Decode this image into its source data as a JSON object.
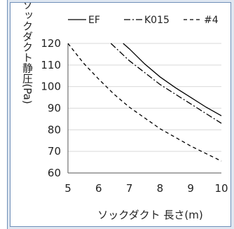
{
  "chart_data": {
    "type": "line",
    "title": "",
    "xlabel": "ソックダクト 長さ(m)",
    "ylabel": "ソックダクト静圧(Pa)",
    "xlim": [
      5,
      10
    ],
    "ylim": [
      60,
      120
    ],
    "xticks": [
      "5",
      "6",
      "7",
      "8",
      "9",
      "10"
    ],
    "yticks": [
      "60",
      "70",
      "80",
      "90",
      "100",
      "110",
      "120"
    ],
    "grid": "horizontal",
    "legend_position": "top",
    "series": [
      {
        "name": "EF",
        "style": "solid",
        "color": "#000000",
        "x": [
          6.8,
          7.0,
          7.5,
          8.0,
          8.5,
          9.0,
          9.5,
          10.0
        ],
        "y": [
          120,
          117.5,
          110.5,
          104.5,
          99.5,
          95,
          90.5,
          86.5
        ]
      },
      {
        "name": "K015",
        "style": "dashdot",
        "color": "#000000",
        "x": [
          6.4,
          7.0,
          7.5,
          8.0,
          8.5,
          9.0,
          9.5,
          10.0
        ],
        "y": [
          120,
          112,
          106.5,
          101,
          96.5,
          92,
          87.5,
          83
        ]
      },
      {
        "name": "#4",
        "style": "dashed",
        "color": "#000000",
        "x": [
          5.0,
          5.5,
          6.0,
          6.5,
          7.0,
          7.5,
          8.0,
          8.5,
          9.0,
          9.5,
          10.0
        ],
        "y": [
          120,
          111,
          103.5,
          96.5,
          90.5,
          85.5,
          80.5,
          76.5,
          72.5,
          69,
          65.5
        ]
      }
    ]
  }
}
